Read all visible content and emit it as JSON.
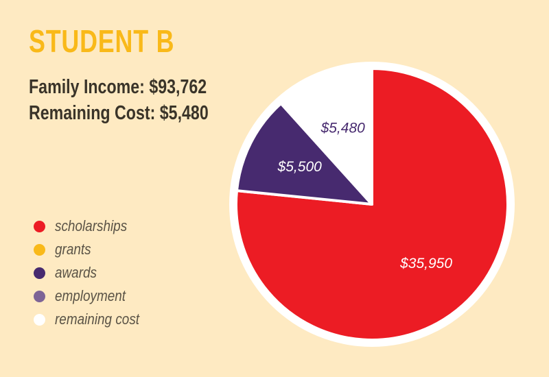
{
  "title": "STUDENT B",
  "stats": {
    "family_income": "Family Income: $93,762",
    "remaining_cost": "Remaining Cost: $5,480"
  },
  "legend": [
    {
      "label": "scholarships",
      "color": "#ec1c24"
    },
    {
      "label": "grants",
      "color": "#f9b919"
    },
    {
      "label": "awards",
      "color": "#472a6f"
    },
    {
      "label": "employment",
      "color": "#7d6496"
    },
    {
      "label": "remaining cost",
      "color": "#ffffff"
    }
  ],
  "chart_data": {
    "type": "pie",
    "title": "STUDENT B",
    "slices": [
      {
        "category": "scholarships",
        "value": 35950,
        "label": "$35,950",
        "color": "#ec1c24",
        "label_color": "#ffffff"
      },
      {
        "category": "awards",
        "value": 5500,
        "label": "$5,500",
        "color": "#472a6f",
        "label_color": "#ffffff"
      },
      {
        "category": "remaining cost",
        "value": 5480,
        "label": "$5,480",
        "color": "#ffffff",
        "label_color": "#472a6f"
      }
    ],
    "start_angle": "12 o'clock",
    "direction": "clockwise",
    "legend_position": "left"
  }
}
